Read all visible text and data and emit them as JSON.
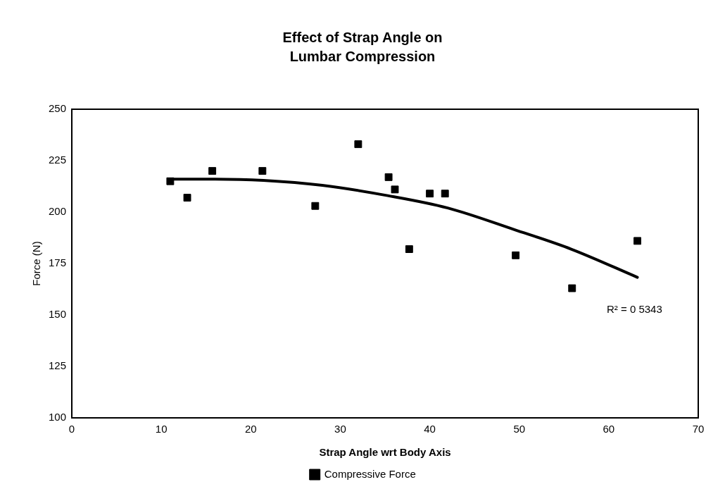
{
  "chart_data": {
    "type": "scatter",
    "title": "Effect of Strap Angle on Lumbar Compression",
    "xlabel": "Strap Angle wrt Body Axis",
    "ylabel": "Force (N)",
    "xlim": [
      0,
      70
    ],
    "xticks": [
      0,
      10,
      20,
      30,
      40,
      50,
      60,
      70
    ],
    "ylim": [
      100,
      250
    ],
    "yticks": [
      100,
      125,
      150,
      175,
      200,
      225,
      250
    ],
    "grid": false,
    "legend": "bottom",
    "marker": "square",
    "series": [
      {
        "name": "Compressive Force",
        "color": "#000000",
        "x": [
          11.0,
          12.9,
          15.7,
          21.3,
          27.2,
          32.0,
          35.4,
          36.1,
          37.7,
          40.0,
          41.7,
          49.6,
          55.9,
          63.2
        ],
        "values": [
          215,
          207,
          220,
          220,
          203,
          233,
          217,
          211,
          182,
          209,
          209,
          179,
          163,
          186
        ]
      },
      {
        "type": "line",
        "color": "#000000",
        "marker": "none",
        "x": [
          11.3,
          16,
          21.4,
          28,
          35.3,
          42,
          49.5,
          55.8,
          63.2
        ],
        "values": [
          216,
          216,
          215.4,
          213,
          208,
          202,
          191.4,
          182,
          168.3
        ]
      }
    ],
    "annotations": [
      "R² = 0 5343"
    ]
  }
}
